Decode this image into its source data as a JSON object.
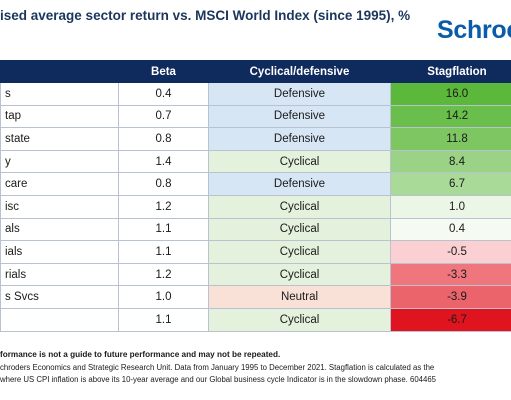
{
  "header": {
    "title": "ised average sector return vs. MSCI World Index (since 1995), %",
    "logo": "Schroc"
  },
  "chart_data": {
    "type": "table",
    "columns": [
      "",
      "Beta",
      "Cyclical/defensive",
      "Stagflation"
    ],
    "rows": [
      {
        "sector": "s",
        "beta": "0.4",
        "cyclical": "Defensive",
        "stagflation": "16.0"
      },
      {
        "sector": "tap",
        "beta": "0.7",
        "cyclical": "Defensive",
        "stagflation": "14.2"
      },
      {
        "sector": "state",
        "beta": "0.8",
        "cyclical": "Defensive",
        "stagflation": "11.8"
      },
      {
        "sector": "y",
        "beta": "1.4",
        "cyclical": "Cyclical",
        "stagflation": "8.4"
      },
      {
        "sector": "care",
        "beta": "0.8",
        "cyclical": "Defensive",
        "stagflation": "6.7"
      },
      {
        "sector": "isc",
        "beta": "1.2",
        "cyclical": "Cyclical",
        "stagflation": "1.0"
      },
      {
        "sector": "als",
        "beta": "1.1",
        "cyclical": "Cyclical",
        "stagflation": "0.4"
      },
      {
        "sector": "ials",
        "beta": "1.1",
        "cyclical": "Cyclical",
        "stagflation": "-0.5"
      },
      {
        "sector": "rials",
        "beta": "1.2",
        "cyclical": "Cyclical",
        "stagflation": "-3.3"
      },
      {
        "sector": "s Svcs",
        "beta": "1.0",
        "cyclical": "Neutral",
        "stagflation": "-3.9"
      },
      {
        "sector": "",
        "beta": "1.1",
        "cyclical": "Cyclical",
        "stagflation": "-6.7"
      }
    ],
    "colors": {
      "header_bg": "#0f2a5c",
      "defensive": "#d6e6f5",
      "cyclical": "#e4f1dc",
      "neutral": "#f9e1d8",
      "positive_max": "#5cb83a",
      "negative_max": "#e0141e"
    }
  },
  "footer": {
    "line1": "formance is not a guide to future performance and may not be repeated.",
    "line2": "chroders Economics and Strategic Research Unit. Data from January 1995 to December 2021. Stagflation is calculated as the",
    "line3": "where US CPI inflation is above its 10-year average and our Global business cycle Indicator is in the slowdown phase. 604465"
  }
}
